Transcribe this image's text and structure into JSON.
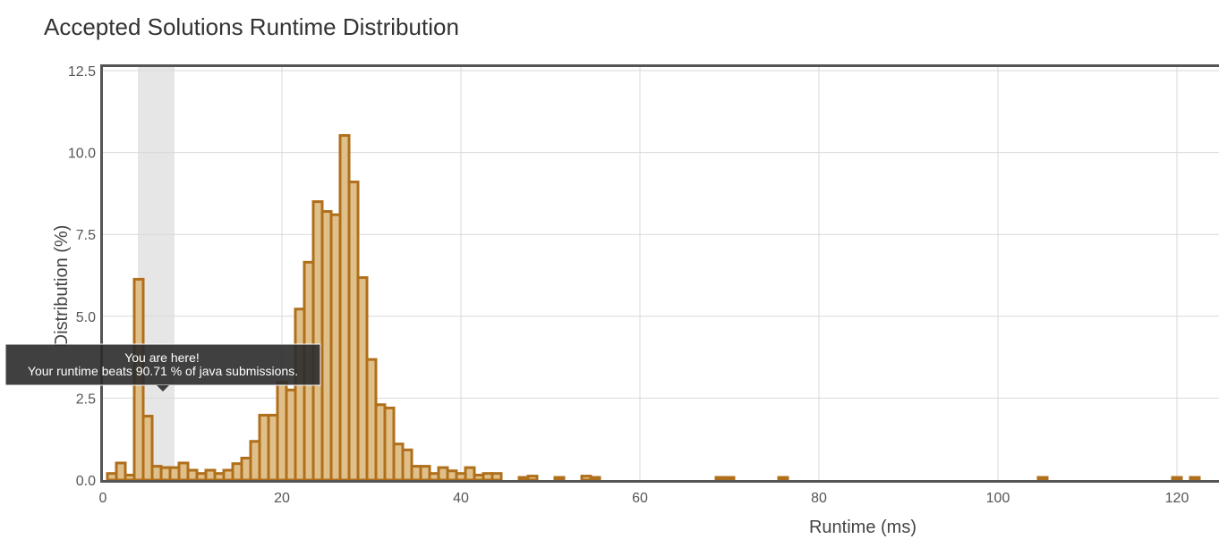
{
  "chart_data": {
    "type": "bar",
    "title": "Accepted Solutions Runtime Distribution",
    "xlabel": "Runtime (ms)",
    "ylabel": "Distribution (%)",
    "xlim": [
      0,
      125
    ],
    "ylim": [
      0,
      12.5
    ],
    "x_ticks": [
      "0",
      "20",
      "40",
      "60",
      "80",
      "100",
      "120"
    ],
    "y_ticks": [
      "0.0",
      "2.5",
      "5.0",
      "7.5",
      "10.0",
      "12.5"
    ],
    "grid": true,
    "bar_width": 1,
    "bar_color": "#e0c08a",
    "bar_edge_color": "#b06f1a",
    "highlight_range": [
      4,
      8
    ],
    "highlight_color": "#e6e6e6",
    "bars": [
      {
        "x": 1,
        "y": 0.2
      },
      {
        "x": 2,
        "y": 0.52
      },
      {
        "x": 3,
        "y": 0.15
      },
      {
        "x": 4,
        "y": 6.13
      },
      {
        "x": 5,
        "y": 1.95
      },
      {
        "x": 6,
        "y": 0.42
      },
      {
        "x": 7,
        "y": 0.38
      },
      {
        "x": 8,
        "y": 0.38
      },
      {
        "x": 9,
        "y": 0.52
      },
      {
        "x": 10,
        "y": 0.3
      },
      {
        "x": 11,
        "y": 0.2
      },
      {
        "x": 12,
        "y": 0.3
      },
      {
        "x": 13,
        "y": 0.2
      },
      {
        "x": 14,
        "y": 0.3
      },
      {
        "x": 15,
        "y": 0.5
      },
      {
        "x": 16,
        "y": 0.67
      },
      {
        "x": 17,
        "y": 1.18
      },
      {
        "x": 18,
        "y": 1.98
      },
      {
        "x": 19,
        "y": 1.98
      },
      {
        "x": 20,
        "y": 2.98
      },
      {
        "x": 21,
        "y": 2.75
      },
      {
        "x": 22,
        "y": 5.22
      },
      {
        "x": 23,
        "y": 6.65
      },
      {
        "x": 24,
        "y": 8.5
      },
      {
        "x": 25,
        "y": 8.2
      },
      {
        "x": 26,
        "y": 8.1
      },
      {
        "x": 27,
        "y": 10.52
      },
      {
        "x": 28,
        "y": 9.1
      },
      {
        "x": 29,
        "y": 6.18
      },
      {
        "x": 30,
        "y": 3.68
      },
      {
        "x": 31,
        "y": 2.3
      },
      {
        "x": 32,
        "y": 2.2
      },
      {
        "x": 33,
        "y": 1.1
      },
      {
        "x": 34,
        "y": 0.92
      },
      {
        "x": 35,
        "y": 0.42
      },
      {
        "x": 36,
        "y": 0.42
      },
      {
        "x": 37,
        "y": 0.2
      },
      {
        "x": 38,
        "y": 0.38
      },
      {
        "x": 39,
        "y": 0.28
      },
      {
        "x": 40,
        "y": 0.2
      },
      {
        "x": 41,
        "y": 0.38
      },
      {
        "x": 42,
        "y": 0.15
      },
      {
        "x": 43,
        "y": 0.2
      },
      {
        "x": 44,
        "y": 0.2
      },
      {
        "x": 47,
        "y": 0.08
      },
      {
        "x": 48,
        "y": 0.12
      },
      {
        "x": 51,
        "y": 0.08
      },
      {
        "x": 54,
        "y": 0.12
      },
      {
        "x": 55,
        "y": 0.08
      },
      {
        "x": 69,
        "y": 0.08
      },
      {
        "x": 70,
        "y": 0.08
      },
      {
        "x": 76,
        "y": 0.08
      },
      {
        "x": 105,
        "y": 0.08
      },
      {
        "x": 120,
        "y": 0.08
      },
      {
        "x": 122,
        "y": 0.08
      }
    ],
    "annotation": {
      "line1": "You are here!",
      "line2": "Your runtime beats 90.71 % of java submissions."
    }
  }
}
